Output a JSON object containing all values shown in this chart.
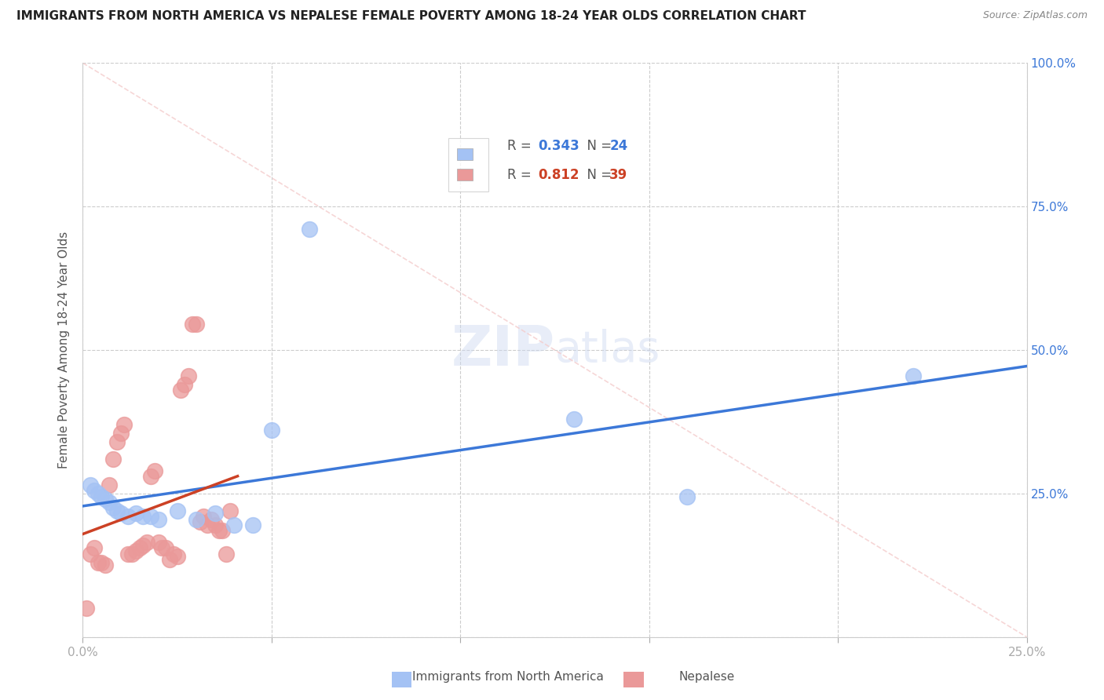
{
  "title": "IMMIGRANTS FROM NORTH AMERICA VS NEPALESE FEMALE POVERTY AMONG 18-24 YEAR OLDS CORRELATION CHART",
  "source": "Source: ZipAtlas.com",
  "ylabel": "Female Poverty Among 18-24 Year Olds",
  "xlim": [
    0.0,
    0.25
  ],
  "ylim": [
    0.0,
    1.0
  ],
  "legend_blue_r": "0.343",
  "legend_blue_n": "24",
  "legend_pink_r": "0.812",
  "legend_pink_n": "39",
  "blue_color": "#a4c2f4",
  "pink_color": "#ea9999",
  "line_blue": "#3c78d8",
  "line_pink": "#cc4125",
  "diag_color": "#f4cccc",
  "blue_scatter_x": [
    0.002,
    0.003,
    0.004,
    0.005,
    0.006,
    0.007,
    0.008,
    0.009,
    0.01,
    0.012,
    0.014,
    0.016,
    0.018,
    0.02,
    0.025,
    0.03,
    0.035,
    0.04,
    0.045,
    0.05,
    0.06,
    0.13,
    0.16,
    0.22
  ],
  "blue_scatter_y": [
    0.265,
    0.255,
    0.25,
    0.245,
    0.24,
    0.235,
    0.225,
    0.22,
    0.215,
    0.21,
    0.215,
    0.21,
    0.21,
    0.205,
    0.22,
    0.205,
    0.215,
    0.195,
    0.195,
    0.36,
    0.71,
    0.38,
    0.245,
    0.455
  ],
  "pink_scatter_x": [
    0.001,
    0.002,
    0.003,
    0.004,
    0.005,
    0.006,
    0.007,
    0.008,
    0.009,
    0.01,
    0.011,
    0.012,
    0.013,
    0.014,
    0.015,
    0.016,
    0.017,
    0.018,
    0.019,
    0.02,
    0.021,
    0.022,
    0.023,
    0.024,
    0.025,
    0.026,
    0.027,
    0.028,
    0.029,
    0.03,
    0.031,
    0.032,
    0.033,
    0.034,
    0.035,
    0.036,
    0.037,
    0.038,
    0.039
  ],
  "pink_scatter_y": [
    0.05,
    0.145,
    0.155,
    0.13,
    0.13,
    0.125,
    0.265,
    0.31,
    0.34,
    0.355,
    0.37,
    0.145,
    0.145,
    0.15,
    0.155,
    0.16,
    0.165,
    0.28,
    0.29,
    0.165,
    0.155,
    0.155,
    0.135,
    0.145,
    0.14,
    0.43,
    0.44,
    0.455,
    0.545,
    0.545,
    0.2,
    0.21,
    0.195,
    0.205,
    0.195,
    0.185,
    0.185,
    0.145,
    0.22
  ]
}
